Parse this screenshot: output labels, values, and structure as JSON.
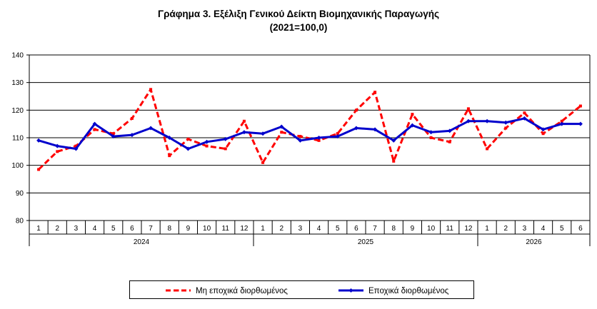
{
  "chart_data": {
    "type": "line",
    "title": "Γράφημα 3. Εξέλιξη Γενικού Δείκτη Βιομηχανικής Παραγωγής",
    "subtitle": "(2021=100,0)",
    "xlabel": "",
    "ylabel": "",
    "ylim": [
      80,
      140
    ],
    "yticks": [
      "80",
      "90",
      "100",
      "110",
      "120",
      "130",
      "140"
    ],
    "grid": true,
    "legend_position": "bottom",
    "months": [
      "1",
      "2",
      "3",
      "4",
      "5",
      "6",
      "7",
      "8",
      "9",
      "10",
      "11",
      "12",
      "1",
      "2",
      "3",
      "4",
      "5",
      "6",
      "7",
      "8",
      "9",
      "10",
      "11",
      "12",
      "1",
      "2",
      "3",
      "4",
      "5",
      "6"
    ],
    "years": [
      {
        "label": "2024",
        "months": 12
      },
      {
        "label": "2025",
        "months": 12
      },
      {
        "label": "2026",
        "months": 6
      }
    ],
    "series": [
      {
        "name": "Μη εποχικά διορθωμένος",
        "color": "#ff0000",
        "style": "dashed",
        "values": [
          98.5,
          105.0,
          107.0,
          113.0,
          111.5,
          117.0,
          127.5,
          103.5,
          109.5,
          107.0,
          106.0,
          116.0,
          101.0,
          112.0,
          110.5,
          109.0,
          111.5,
          120.0,
          126.5,
          101.5,
          118.5,
          110.0,
          108.5,
          120.5,
          106.0,
          113.5,
          119.0,
          111.5,
          116.0,
          121.5
        ]
      },
      {
        "name": "Εποχικά διορθωμένος",
        "color": "#0000cc",
        "style": "solid",
        "values": [
          109.0,
          107.0,
          106.0,
          115.0,
          110.5,
          111.0,
          113.5,
          110.0,
          106.0,
          108.5,
          109.5,
          112.0,
          111.5,
          114.0,
          109.0,
          110.0,
          110.5,
          113.5,
          113.0,
          109.0,
          114.5,
          112.0,
          112.5,
          116.0,
          116.0,
          115.5,
          117.0,
          113.0,
          115.0,
          115.0
        ]
      }
    ]
  }
}
